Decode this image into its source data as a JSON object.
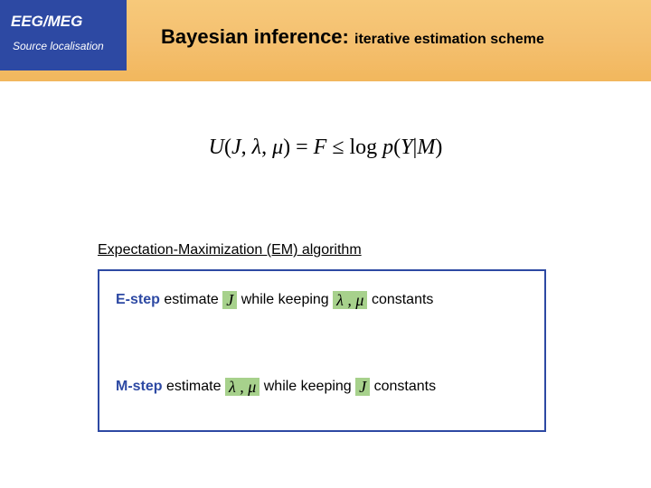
{
  "header": {
    "tab_line1": "EEG/MEG",
    "tab_line2": "Source localisation",
    "title_strong": "Bayesian inference:",
    "title_sub": "iterative estimation scheme"
  },
  "equation": {
    "U": "U",
    "open": "(",
    "J": "J",
    "comma1": ", ",
    "lambda": "λ",
    "comma2": ", ",
    "mu": "μ",
    "close": ")",
    "eq": " = ",
    "F": "F",
    "leq": "  ≤  ",
    "log": "log ",
    "p": "p",
    "open2": "(",
    "Y": "Y",
    "bar": "|",
    "M": "M",
    "close2": ")"
  },
  "section": {
    "label": "Expectation-Maximization (EM) algorithm"
  },
  "estep": {
    "label": "E-step",
    "verb": "  estimate",
    "var1": "J",
    "mid": "while keeping",
    "var2": "λ , μ",
    "tail": "constants"
  },
  "mstep": {
    "label": "M-step",
    "verb": "  estimate",
    "var1": "λ , μ",
    "mid": " while keeping",
    "var2": "J",
    "tail": "constants"
  },
  "colors": {
    "tab_bg": "#2d49a3",
    "bar_bg_top": "#f7c97a",
    "bar_bg_bot": "#f2b75d",
    "highlight": "#a7d18c",
    "box_border": "#2d49a3"
  }
}
